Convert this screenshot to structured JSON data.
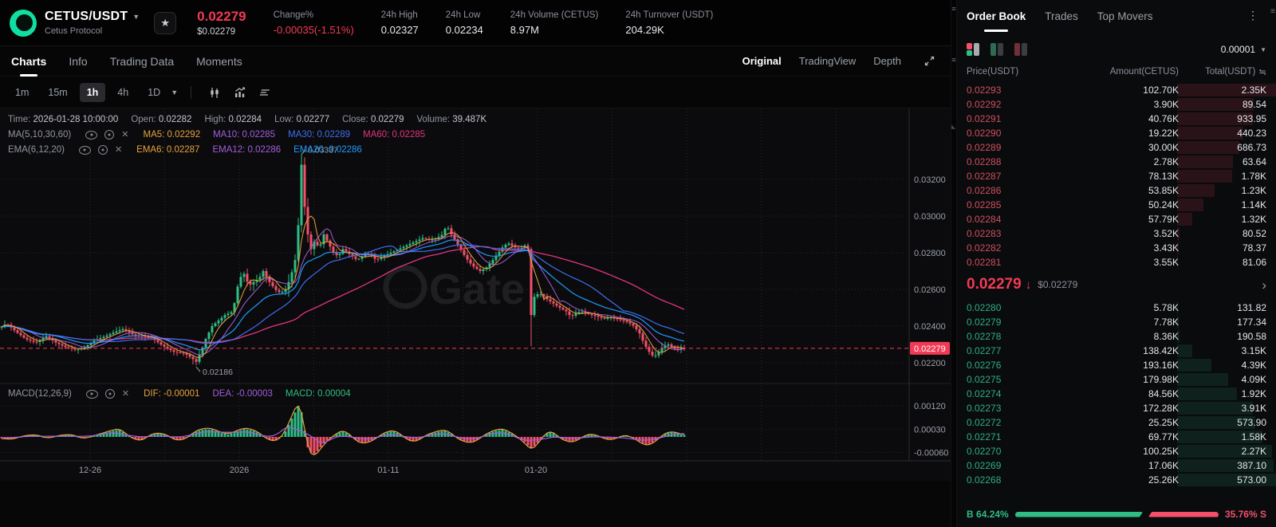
{
  "header": {
    "pair": "CETUS/USDT",
    "protocol": "Cetus Protocol",
    "price": "0.02279",
    "price_usd": "$0.02279",
    "stats": [
      {
        "label": "Change%",
        "value": "-0.00035(-1.51%)",
        "red": true
      },
      {
        "label": "24h High",
        "value": "0.02327",
        "red": false
      },
      {
        "label": "24h Low",
        "value": "0.02234",
        "red": false
      },
      {
        "label": "24h Volume (CETUS)",
        "value": "8.97M",
        "red": false
      },
      {
        "label": "24h Turnover (USDT)",
        "value": "204.29K",
        "red": false
      }
    ]
  },
  "tabs": {
    "left": [
      "Charts",
      "Info",
      "Trading Data",
      "Moments"
    ],
    "left_active": "Charts",
    "right": [
      "Original",
      "TradingView",
      "Depth"
    ],
    "right_active": "Original"
  },
  "toolbar": {
    "timeframes": [
      "1m",
      "15m",
      "1h",
      "4h",
      "1D"
    ],
    "active": "1h",
    "dropdown_timeframe": "1D"
  },
  "chart": {
    "watermark": "Gate",
    "info_items": [
      {
        "label": "Time:",
        "value": "2026-01-28 10:00:00"
      },
      {
        "label": "Open:",
        "value": "0.02282"
      },
      {
        "label": "High:",
        "value": "0.02284"
      },
      {
        "label": "Low:",
        "value": "0.02277"
      },
      {
        "label": "Close:",
        "value": "0.02279"
      },
      {
        "label": "Volume:",
        "value": "39.487K"
      }
    ],
    "ma_group": {
      "name": "MA(5,10,30,60)",
      "items": [
        {
          "label": "MA5:",
          "value": "0.02292",
          "color": "#e6a23c"
        },
        {
          "label": "MA10:",
          "value": "0.02285",
          "color": "#a25ddc"
        },
        {
          "label": "MA30:",
          "value": "0.02289",
          "color": "#3f6df0"
        },
        {
          "label": "MA60:",
          "value": "0.02285",
          "color": "#e0357f"
        }
      ]
    },
    "ema_group": {
      "name": "EMA(6,12,20)",
      "items": [
        {
          "label": "EMA6:",
          "value": "0.02287",
          "color": "#e6a23c"
        },
        {
          "label": "EMA12:",
          "value": "0.02286",
          "color": "#a25ddc"
        },
        {
          "label": "EMA20:",
          "value": "0.02286",
          "color": "#1e9bff"
        }
      ]
    },
    "macd_group": {
      "name": "MACD(12,26,9)",
      "items": [
        {
          "label": "DIF:",
          "value": "-0.00001",
          "color": "#e6a23c"
        },
        {
          "label": "DEA:",
          "value": "-0.00003",
          "color": "#a25ddc"
        },
        {
          "label": "MACD:",
          "value": "0.00004",
          "color": "#2fbd85"
        }
      ]
    },
    "chart_data": {
      "type": "candlestick+macd",
      "current_price": 0.02279,
      "current_price_label": "0.02279",
      "y_ticks": [
        {
          "p": 0.032,
          "label": "0.03200"
        },
        {
          "p": 0.03,
          "label": "0.03000"
        },
        {
          "p": 0.028,
          "label": "0.02800"
        },
        {
          "p": 0.026,
          "label": "0.02600"
        },
        {
          "p": 0.024,
          "label": "0.02400"
        },
        {
          "p": 0.022,
          "label": "0.02200"
        }
      ],
      "macd_ticks": [
        {
          "v": 0.0012,
          "label": "0.00120"
        },
        {
          "v": 0.0003,
          "label": "0.00030"
        },
        {
          "v": -0.0006,
          "label": "-0.00060"
        }
      ],
      "x_ticks": [
        {
          "x": 113,
          "label": "12-26"
        },
        {
          "x": 300,
          "label": "2026"
        },
        {
          "x": 487,
          "label": "01-11"
        },
        {
          "x": 672,
          "label": "01-20"
        }
      ],
      "annotations": {
        "high": {
          "x": 378,
          "price": 0.03337,
          "label": "0.03337"
        },
        "low": {
          "x": 246,
          "price": 0.02186,
          "label": "0.02186"
        }
      },
      "crash": {
        "x": 666,
        "open": 0.0282,
        "close": 0.0246,
        "low": 0.0229,
        "high": 0.0283
      },
      "price_path": [
        [
          0,
          0.0239
        ],
        [
          8,
          0.02415
        ],
        [
          20,
          0.0237
        ],
        [
          32,
          0.0233
        ],
        [
          45,
          0.0231
        ],
        [
          58,
          0.02345
        ],
        [
          70,
          0.0231
        ],
        [
          82,
          0.02285
        ],
        [
          95,
          0.0227
        ],
        [
          105,
          0.0228
        ],
        [
          118,
          0.0232
        ],
        [
          132,
          0.02345
        ],
        [
          145,
          0.0237
        ],
        [
          155,
          0.02385
        ],
        [
          168,
          0.0235
        ],
        [
          180,
          0.02345
        ],
        [
          192,
          0.0233
        ],
        [
          205,
          0.0229
        ],
        [
          218,
          0.0226
        ],
        [
          232,
          0.0225
        ],
        [
          242,
          0.0222
        ],
        [
          246,
          0.02205
        ],
        [
          252,
          0.0226
        ],
        [
          258,
          0.0233
        ],
        [
          266,
          0.024
        ],
        [
          274,
          0.0243
        ],
        [
          282,
          0.0246
        ],
        [
          292,
          0.0248
        ],
        [
          300,
          0.0266
        ],
        [
          306,
          0.02685
        ],
        [
          312,
          0.0262
        ],
        [
          318,
          0.0264
        ],
        [
          325,
          0.0266
        ],
        [
          330,
          0.027
        ],
        [
          338,
          0.0264
        ],
        [
          345,
          0.026
        ],
        [
          352,
          0.0258
        ],
        [
          358,
          0.026
        ],
        [
          364,
          0.0266
        ],
        [
          370,
          0.0276
        ],
        [
          374,
          0.0295
        ],
        [
          378,
          0.0328
        ],
        [
          382,
          0.0305
        ],
        [
          386,
          0.029
        ],
        [
          390,
          0.0282
        ],
        [
          395,
          0.0287
        ],
        [
          400,
          0.0282
        ],
        [
          406,
          0.029
        ],
        [
          412,
          0.0285
        ],
        [
          418,
          0.028
        ],
        [
          424,
          0.0278
        ],
        [
          430,
          0.0282
        ],
        [
          436,
          0.028
        ],
        [
          442,
          0.0278
        ],
        [
          448,
          0.0276
        ],
        [
          454,
          0.0278
        ],
        [
          460,
          0.028
        ],
        [
          466,
          0.0278
        ],
        [
          472,
          0.0276
        ],
        [
          480,
          0.0278
        ],
        [
          490,
          0.028
        ],
        [
          500,
          0.0282
        ],
        [
          510,
          0.0284
        ],
        [
          520,
          0.0286
        ],
        [
          530,
          0.0288
        ],
        [
          540,
          0.0287
        ],
        [
          548,
          0.0288
        ],
        [
          555,
          0.029
        ],
        [
          560,
          0.0295
        ],
        [
          566,
          0.029
        ],
        [
          572,
          0.0286
        ],
        [
          580,
          0.028
        ],
        [
          588,
          0.0275
        ],
        [
          595,
          0.0272
        ],
        [
          602,
          0.027
        ],
        [
          610,
          0.0272
        ],
        [
          618,
          0.0276
        ],
        [
          625,
          0.028
        ],
        [
          632,
          0.0284
        ],
        [
          638,
          0.0285
        ],
        [
          645,
          0.0283
        ],
        [
          652,
          0.0282
        ],
        [
          658,
          0.0284
        ],
        [
          662,
          0.0282
        ],
        [
          666,
          0.0246
        ],
        [
          670,
          0.0256
        ],
        [
          676,
          0.0258
        ],
        [
          682,
          0.0256
        ],
        [
          688,
          0.0254
        ],
        [
          695,
          0.0252
        ],
        [
          702,
          0.025
        ],
        [
          710,
          0.0248
        ],
        [
          716,
          0.0245
        ],
        [
          722,
          0.0247
        ],
        [
          728,
          0.0248
        ],
        [
          735,
          0.0247
        ],
        [
          742,
          0.0246
        ],
        [
          750,
          0.0245
        ],
        [
          758,
          0.0244
        ],
        [
          765,
          0.0245
        ],
        [
          772,
          0.0244
        ],
        [
          780,
          0.0243
        ],
        [
          788,
          0.0242
        ],
        [
          795,
          0.024
        ],
        [
          802,
          0.0236
        ],
        [
          808,
          0.023
        ],
        [
          814,
          0.0226
        ],
        [
          820,
          0.0223
        ],
        [
          826,
          0.0226
        ],
        [
          832,
          0.0229
        ],
        [
          838,
          0.023
        ],
        [
          844,
          0.0228
        ],
        [
          850,
          0.0227
        ],
        [
          855,
          0.02285
        ],
        [
          858,
          0.02279
        ]
      ],
      "macd_path": [
        [
          0,
          -5e-05
        ],
        [
          15,
          -8e-05
        ],
        [
          30,
          4e-05
        ],
        [
          45,
          8e-05
        ],
        [
          60,
          -5e-05
        ],
        [
          75,
          6e-05
        ],
        [
          90,
          8e-05
        ],
        [
          105,
          -6e-05
        ],
        [
          120,
          6e-05
        ],
        [
          140,
          0.00022
        ],
        [
          150,
          0.00028
        ],
        [
          158,
          0.0001
        ],
        [
          168,
          -8e-05
        ],
        [
          178,
          -0.00012
        ],
        [
          190,
          0.0001
        ],
        [
          200,
          0.00014
        ],
        [
          210,
          6e-05
        ],
        [
          220,
          -0.00012
        ],
        [
          232,
          -8e-05
        ],
        [
          244,
          0.00018
        ],
        [
          256,
          0.0003
        ],
        [
          266,
          0.00028
        ],
        [
          276,
          0.00016
        ],
        [
          286,
          0.0001
        ],
        [
          296,
          0.0002
        ],
        [
          306,
          0.0003
        ],
        [
          316,
          0.00026
        ],
        [
          326,
          0.00012
        ],
        [
          336,
          -0.0001
        ],
        [
          346,
          -0.00014
        ],
        [
          356,
          8e-05
        ],
        [
          364,
          0.0006
        ],
        [
          371,
          0.001
        ],
        [
          376,
          0.00132
        ],
        [
          381,
          0.0004
        ],
        [
          386,
          -0.0004
        ],
        [
          392,
          -0.0007
        ],
        [
          398,
          -0.00055
        ],
        [
          406,
          -0.00025
        ],
        [
          414,
          -5e-05
        ],
        [
          422,
          0.00012
        ],
        [
          430,
          0.00022
        ],
        [
          438,
          0.0001
        ],
        [
          446,
          -0.00012
        ],
        [
          454,
          -0.00022
        ],
        [
          462,
          -0.00018
        ],
        [
          470,
          -8e-05
        ],
        [
          478,
          8e-05
        ],
        [
          486,
          0.00018
        ],
        [
          494,
          0.00022
        ],
        [
          502,
          0.0001
        ],
        [
          510,
          -8e-05
        ],
        [
          518,
          -0.00016
        ],
        [
          526,
          -0.0001
        ],
        [
          534,
          6e-05
        ],
        [
          542,
          0.00014
        ],
        [
          550,
          0.0002
        ],
        [
          558,
          0.00024
        ],
        [
          566,
          0.00012
        ],
        [
          574,
          -6e-05
        ],
        [
          582,
          -0.00016
        ],
        [
          590,
          -0.0002
        ],
        [
          598,
          -0.00012
        ],
        [
          606,
          4e-05
        ],
        [
          614,
          0.00016
        ],
        [
          622,
          0.00024
        ],
        [
          630,
          0.00028
        ],
        [
          638,
          0.00018
        ],
        [
          646,
          6e-05
        ],
        [
          652,
          -8e-05
        ],
        [
          658,
          -0.0002
        ],
        [
          666,
          -0.00045
        ],
        [
          672,
          -0.0003
        ],
        [
          678,
          -0.0001
        ],
        [
          684,
          0.00012
        ],
        [
          690,
          0.0002
        ],
        [
          696,
          0.00012
        ],
        [
          702,
          -4e-05
        ],
        [
          710,
          -0.00014
        ],
        [
          718,
          -0.00018
        ],
        [
          726,
          -8e-05
        ],
        [
          734,
          6e-05
        ],
        [
          742,
          0.0001
        ],
        [
          750,
          4e-05
        ],
        [
          758,
          -6e-05
        ],
        [
          766,
          -0.0001
        ],
        [
          774,
          -4e-05
        ],
        [
          782,
          6e-05
        ],
        [
          790,
          2e-05
        ],
        [
          798,
          -0.0001
        ],
        [
          806,
          -0.00024
        ],
        [
          812,
          -0.0003
        ],
        [
          818,
          -0.00022
        ],
        [
          826,
          -6e-05
        ],
        [
          832,
          0.0001
        ],
        [
          840,
          0.00018
        ],
        [
          848,
          0.00016
        ],
        [
          855,
          8e-05
        ]
      ]
    }
  },
  "orderbook": {
    "tabs": [
      "Order Book",
      "Trades",
      "Top Movers"
    ],
    "active_tab": "Order Book",
    "precision": "0.00001",
    "columns": [
      "Price(USDT)",
      "Amount(CETUS)",
      "Total(USDT)"
    ],
    "asks": [
      [
        "0.02293",
        "102.70K",
        "2.35K"
      ],
      [
        "0.02292",
        "3.90K",
        "89.54"
      ],
      [
        "0.02291",
        "40.76K",
        "933.95"
      ],
      [
        "0.02290",
        "19.22K",
        "440.23"
      ],
      [
        "0.02289",
        "30.00K",
        "686.73"
      ],
      [
        "0.02288",
        "2.78K",
        "63.64"
      ],
      [
        "0.02287",
        "78.13K",
        "1.78K"
      ],
      [
        "0.02286",
        "53.85K",
        "1.23K"
      ],
      [
        "0.02285",
        "50.24K",
        "1.14K"
      ],
      [
        "0.02284",
        "57.79K",
        "1.32K"
      ],
      [
        "0.02283",
        "3.52K",
        "80.52"
      ],
      [
        "0.02282",
        "3.43K",
        "78.37"
      ],
      [
        "0.02281",
        "3.55K",
        "81.06"
      ]
    ],
    "mid": {
      "price": "0.02279",
      "usd": "$0.02279",
      "direction": "down"
    },
    "bids": [
      [
        "0.02280",
        "5.78K",
        "131.82"
      ],
      [
        "0.02279",
        "7.78K",
        "177.34"
      ],
      [
        "0.02278",
        "8.36K",
        "190.58"
      ],
      [
        "0.02277",
        "138.42K",
        "3.15K"
      ],
      [
        "0.02276",
        "193.16K",
        "4.39K"
      ],
      [
        "0.02275",
        "179.98K",
        "4.09K"
      ],
      [
        "0.02274",
        "84.56K",
        "1.92K"
      ],
      [
        "0.02273",
        "172.28K",
        "3.91K"
      ],
      [
        "0.02272",
        "25.25K",
        "573.90"
      ],
      [
        "0.02271",
        "69.77K",
        "1.58K"
      ],
      [
        "0.02270",
        "100.25K",
        "2.27K"
      ],
      [
        "0.02269",
        "17.06K",
        "387.10"
      ],
      [
        "0.02268",
        "25.26K",
        "573.00"
      ]
    ],
    "ratio": {
      "buy_label": "B",
      "buy": "64.24%",
      "sell": "35.76%",
      "sell_label": "S"
    }
  },
  "colors": {
    "up": "#2fbd85",
    "down": "#f4506a",
    "accent_red": "#f23a55",
    "ask_text": "#cf4f5e",
    "bid_text": "#2fae82",
    "ma5": "#e6a23c",
    "ma10": "#a25ddc",
    "ma30": "#3f6df0",
    "ma60": "#e0357f",
    "ema20": "#1e9bff",
    "grid": "#26282e",
    "axis_text": "#9aa0a8"
  }
}
